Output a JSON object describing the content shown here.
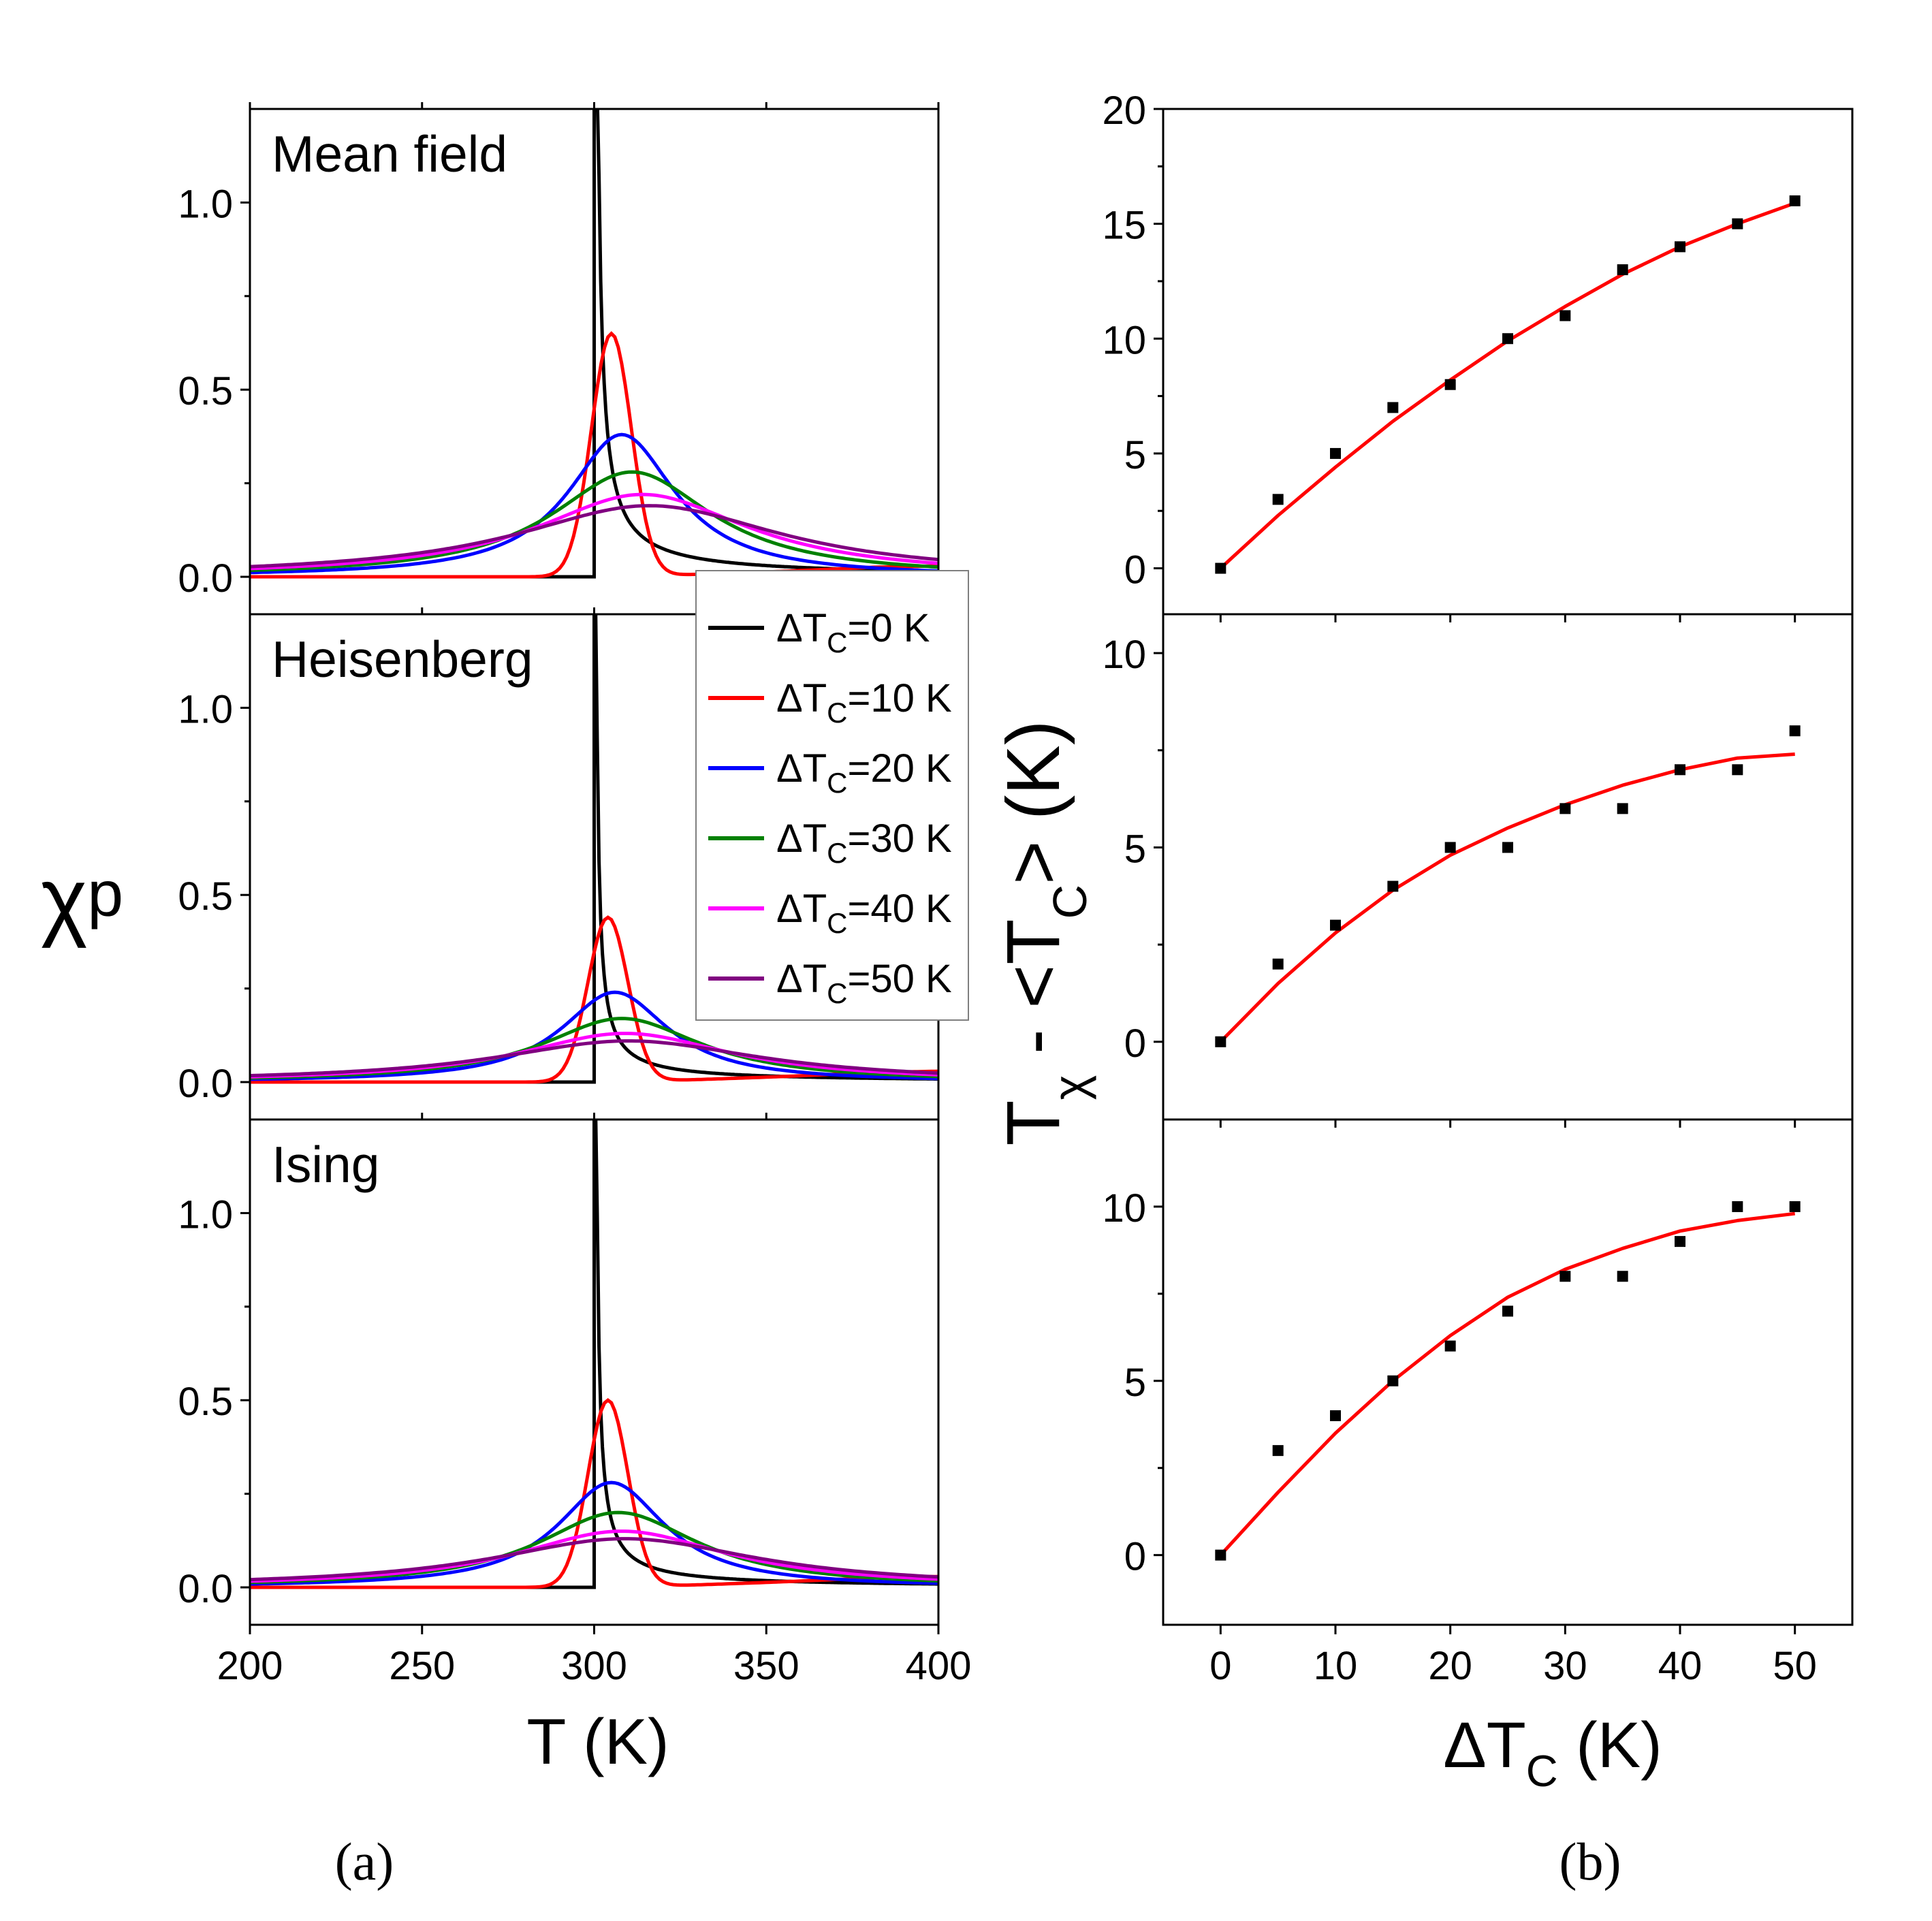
{
  "figure": {
    "panel_labels": [
      "(a)",
      "(b)"
    ],
    "left_axis": {
      "ylabel_main": "χ",
      "ylabel_sub": "p",
      "xlabel": "T (K)"
    },
    "right_axis": {
      "ylabel_parts": [
        "T",
        "χ",
        " - <T",
        "C",
        "> (K)"
      ],
      "xlabel_main": "ΔT",
      "xlabel_sub": "C",
      "xlabel_unit": " (K)"
    },
    "legend": [
      {
        "prefix": "ΔT",
        "sub": "C",
        "suffix": "=0 K",
        "color": "#000000"
      },
      {
        "prefix": "ΔT",
        "sub": "C",
        "suffix": "=10 K",
        "color": "#ff0000"
      },
      {
        "prefix": "ΔT",
        "sub": "C",
        "suffix": "=20 K",
        "color": "#0000ff"
      },
      {
        "prefix": "ΔT",
        "sub": "C",
        "suffix": "=30 K",
        "color": "#008000"
      },
      {
        "prefix": "ΔT",
        "sub": "C",
        "suffix": "=40 K",
        "color": "#ff00ff"
      },
      {
        "prefix": "ΔT",
        "sub": "C",
        "suffix": "=50 K",
        "color": "#800080"
      }
    ]
  },
  "chart_data": [
    {
      "type": "line",
      "panel": "a",
      "title": "Mean field",
      "xlim": [
        200,
        400
      ],
      "ylim": [
        -0.1,
        1.25
      ],
      "xticks": [
        200,
        250,
        300,
        350,
        400
      ],
      "yticks": [
        0.0,
        0.5,
        1.0
      ],
      "ytick_labels": [
        "0.0",
        "0.5",
        "1.0"
      ],
      "series": [
        {
          "name": "ΔTC=0 K",
          "color": "#000000",
          "shape": "divergent",
          "Tc": 300,
          "amp": 1.0
        },
        {
          "name": "ΔTC=10 K",
          "color": "#ff0000",
          "peak_x": 305,
          "peak_y": 0.65,
          "width": 10
        },
        {
          "name": "ΔTC=20 K",
          "color": "#0000ff",
          "peak_x": 308,
          "peak_y": 0.38,
          "width": 20
        },
        {
          "name": "ΔTC=30 K",
          "color": "#008000",
          "peak_x": 311,
          "peak_y": 0.28,
          "width": 30
        },
        {
          "name": "ΔTC=40 K",
          "color": "#ff00ff",
          "peak_x": 314,
          "peak_y": 0.22,
          "width": 40
        },
        {
          "name": "ΔTC=50 K",
          "color": "#800080",
          "peak_x": 316,
          "peak_y": 0.19,
          "width": 50
        }
      ]
    },
    {
      "type": "line",
      "panel": "a",
      "title": "Heisenberg",
      "xlim": [
        200,
        400
      ],
      "ylim": [
        -0.1,
        1.25
      ],
      "xticks": [
        200,
        250,
        300,
        350,
        400
      ],
      "yticks": [
        0.0,
        0.5,
        1.0
      ],
      "ytick_labels": [
        "0.0",
        "0.5",
        "1.0"
      ],
      "series": [
        {
          "name": "ΔTC=0 K",
          "color": "#000000",
          "shape": "divergent",
          "Tc": 300,
          "amp": 0.55
        },
        {
          "name": "ΔTC=10 K",
          "color": "#ff0000",
          "peak_x": 304,
          "peak_y": 0.44,
          "width": 10
        },
        {
          "name": "ΔTC=20 K",
          "color": "#0000ff",
          "peak_x": 306,
          "peak_y": 0.24,
          "width": 20
        },
        {
          "name": "ΔTC=30 K",
          "color": "#008000",
          "peak_x": 308,
          "peak_y": 0.17,
          "width": 30
        },
        {
          "name": "ΔTC=40 K",
          "color": "#ff00ff",
          "peak_x": 309,
          "peak_y": 0.13,
          "width": 40
        },
        {
          "name": "ΔTC=50 K",
          "color": "#800080",
          "peak_x": 310,
          "peak_y": 0.11,
          "width": 50
        }
      ]
    },
    {
      "type": "line",
      "panel": "a",
      "title": "Ising",
      "xlim": [
        200,
        400
      ],
      "ylim": [
        -0.1,
        1.25
      ],
      "xticks": [
        200,
        250,
        300,
        350,
        400
      ],
      "yticks": [
        0.0,
        0.5,
        1.0
      ],
      "ytick_labels": [
        "0.0",
        "0.5",
        "1.0"
      ],
      "xtick_labels": [
        "200",
        "250",
        "300",
        "350",
        "400"
      ],
      "series": [
        {
          "name": "ΔTC=0 K",
          "color": "#000000",
          "shape": "divergent",
          "Tc": 300,
          "amp": 0.6
        },
        {
          "name": "ΔTC=10 K",
          "color": "#ff0000",
          "peak_x": 304,
          "peak_y": 0.5,
          "width": 10
        },
        {
          "name": "ΔTC=20 K",
          "color": "#0000ff",
          "peak_x": 305,
          "peak_y": 0.28,
          "width": 20
        },
        {
          "name": "ΔTC=30 K",
          "color": "#008000",
          "peak_x": 307,
          "peak_y": 0.2,
          "width": 30
        },
        {
          "name": "ΔTC=40 K",
          "color": "#ff00ff",
          "peak_x": 308,
          "peak_y": 0.15,
          "width": 40
        },
        {
          "name": "ΔTC=50 K",
          "color": "#800080",
          "peak_x": 309,
          "peak_y": 0.13,
          "width": 50
        }
      ]
    },
    {
      "type": "scatter",
      "panel": "b",
      "xlim": [
        -5,
        55
      ],
      "ylim": [
        -2,
        20
      ],
      "yticks": [
        0,
        5,
        10,
        15,
        20
      ],
      "ytick_labels": [
        "0",
        "5",
        "10",
        "15",
        "20"
      ],
      "x": [
        0,
        5,
        10,
        15,
        20,
        25,
        30,
        35,
        40,
        45,
        50
      ],
      "y": [
        0,
        3,
        5,
        7,
        8,
        10,
        11,
        13,
        14,
        15,
        16
      ],
      "fit_color": "#ff0000",
      "fit_points": [
        [
          0,
          0
        ],
        [
          5,
          2.3
        ],
        [
          10,
          4.4
        ],
        [
          15,
          6.4
        ],
        [
          20,
          8.2
        ],
        [
          25,
          9.9
        ],
        [
          30,
          11.4
        ],
        [
          35,
          12.8
        ],
        [
          40,
          14.0
        ],
        [
          45,
          15.0
        ],
        [
          50,
          15.9
        ]
      ]
    },
    {
      "type": "scatter",
      "panel": "b",
      "xlim": [
        -5,
        55
      ],
      "ylim": [
        -2,
        11
      ],
      "yticks": [
        0,
        5,
        10
      ],
      "ytick_labels": [
        "0",
        "5",
        "10"
      ],
      "x": [
        0,
        5,
        10,
        15,
        20,
        25,
        30,
        35,
        40,
        45,
        50
      ],
      "y": [
        0,
        2,
        3,
        4,
        5,
        5,
        6,
        6,
        7,
        7,
        8
      ],
      "fit_color": "#ff0000",
      "fit_points": [
        [
          0,
          0
        ],
        [
          5,
          1.5
        ],
        [
          10,
          2.8
        ],
        [
          15,
          3.9
        ],
        [
          20,
          4.8
        ],
        [
          25,
          5.5
        ],
        [
          30,
          6.1
        ],
        [
          35,
          6.6
        ],
        [
          40,
          7.0
        ],
        [
          45,
          7.3
        ],
        [
          50,
          7.4
        ]
      ]
    },
    {
      "type": "scatter",
      "panel": "b",
      "xlim": [
        -5,
        55
      ],
      "ylim": [
        -2,
        12.5
      ],
      "yticks": [
        0,
        5,
        10
      ],
      "ytick_labels": [
        "0",
        "5",
        "10"
      ],
      "xticks": [
        0,
        10,
        20,
        30,
        40,
        50
      ],
      "xtick_labels": [
        "0",
        "10",
        "20",
        "30",
        "40",
        "50"
      ],
      "x": [
        0,
        5,
        10,
        15,
        20,
        25,
        30,
        35,
        40,
        45,
        50
      ],
      "y": [
        0,
        3,
        4,
        5,
        6,
        7,
        8,
        8,
        9,
        10,
        10
      ],
      "fit_color": "#ff0000",
      "fit_points": [
        [
          0,
          0
        ],
        [
          5,
          1.8
        ],
        [
          10,
          3.5
        ],
        [
          15,
          5.0
        ],
        [
          20,
          6.3
        ],
        [
          25,
          7.4
        ],
        [
          30,
          8.2
        ],
        [
          35,
          8.8
        ],
        [
          40,
          9.3
        ],
        [
          45,
          9.6
        ],
        [
          50,
          9.8
        ]
      ]
    }
  ]
}
